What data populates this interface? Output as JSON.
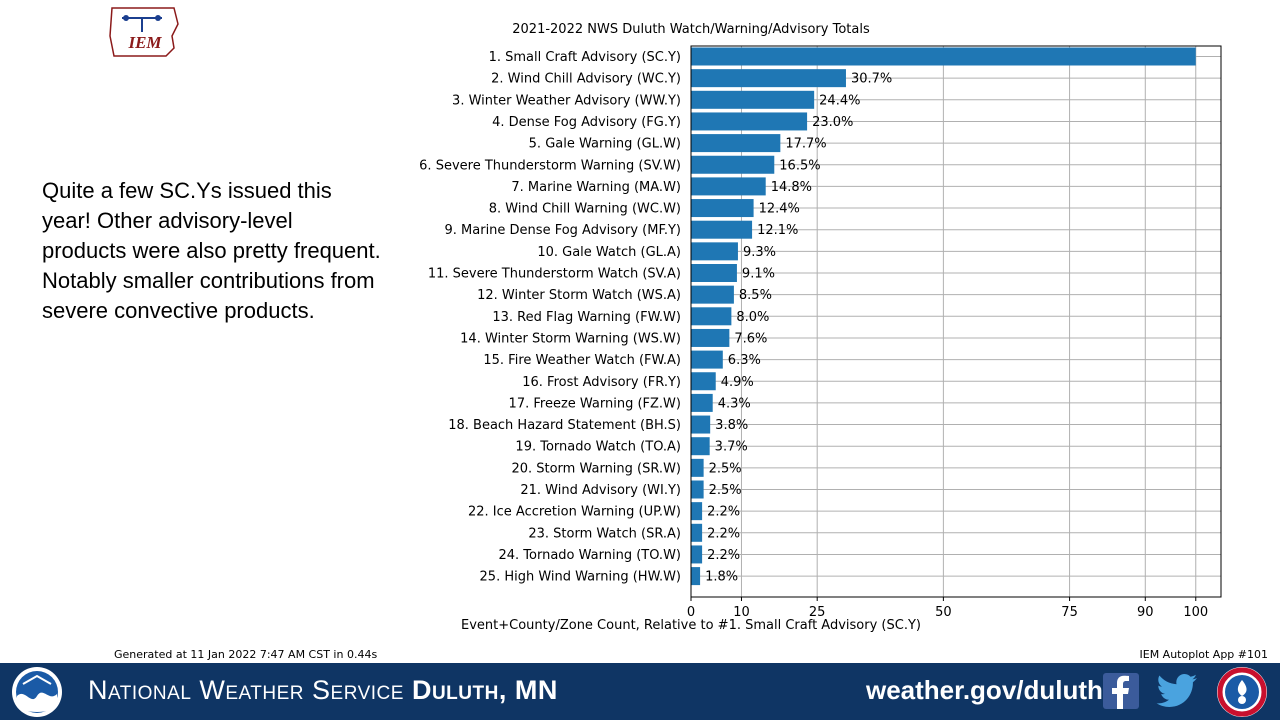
{
  "slide": {
    "note": "Quite a few SC.Ys issued this year! Other advisory-level products were also pretty frequent. Notably smaller contributions from severe convective products.",
    "logo_text": "IEM",
    "generated": "Generated at 11 Jan 2022 7:47 AM CST in 0.44s",
    "app_label": "IEM Autoplot App #101"
  },
  "footer": {
    "org_prefix": "National Weather Service",
    "org_office": "Duluth, MN",
    "website": "weather.gov/duluth",
    "background_color": "#0f3564",
    "icons": [
      "noaa-logo-icon",
      "facebook-icon",
      "twitter-icon",
      "nws-logo-icon"
    ]
  },
  "chart_data": {
    "type": "bar",
    "orientation": "horizontal",
    "title": "2021-2022 NWS Duluth Watch/Warning/Advisory Totals",
    "xlabel": "Event+County/Zone Count, Relative to #1. Small Craft Advisory (SC.Y)",
    "ylabel": "",
    "xlim": [
      0,
      105
    ],
    "xticks": [
      0,
      10,
      25,
      50,
      75,
      90,
      100
    ],
    "grid": true,
    "bar_color": "#1f77b4",
    "categories": [
      "1. Small Craft Advisory (SC.Y)",
      "2. Wind Chill Advisory (WC.Y)",
      "3. Winter Weather Advisory (WW.Y)",
      "4. Dense Fog Advisory (FG.Y)",
      "5. Gale Warning (GL.W)",
      "6. Severe Thunderstorm Warning (SV.W)",
      "7. Marine Warning (MA.W)",
      "8. Wind Chill Warning (WC.W)",
      "9. Marine Dense Fog Advisory (MF.Y)",
      "10. Gale Watch (GL.A)",
      "11. Severe Thunderstorm Watch (SV.A)",
      "12. Winter Storm Watch (WS.A)",
      "13. Red Flag Warning (FW.W)",
      "14. Winter Storm Warning (WS.W)",
      "15. Fire Weather Watch (FW.A)",
      "16. Frost Advisory (FR.Y)",
      "17. Freeze Warning (FZ.W)",
      "18. Beach Hazard Statement (BH.S)",
      "19. Tornado Watch (TO.A)",
      "20. Storm Warning (SR.W)",
      "21. Wind Advisory (WI.Y)",
      "22. Ice Accretion Warning (UP.W)",
      "23. Storm Watch (SR.A)",
      "24. Tornado Warning (TO.W)",
      "25. High Wind Warning (HW.W)"
    ],
    "values": [
      100,
      30.7,
      24.4,
      23.0,
      17.7,
      16.5,
      14.8,
      12.4,
      12.1,
      9.3,
      9.1,
      8.5,
      8.0,
      7.6,
      6.3,
      4.9,
      4.3,
      3.8,
      3.7,
      2.5,
      2.5,
      2.2,
      2.2,
      2.2,
      1.8
    ],
    "value_labels": [
      "",
      "30.7%",
      "24.4%",
      "23.0%",
      "17.7%",
      "16.5%",
      "14.8%",
      "12.4%",
      "12.1%",
      "9.3%",
      "9.1%",
      "8.5%",
      "8.0%",
      "7.6%",
      "6.3%",
      "4.9%",
      "4.3%",
      "3.8%",
      "3.7%",
      "2.5%",
      "2.5%",
      "2.2%",
      "2.2%",
      "2.2%",
      "1.8%"
    ]
  }
}
